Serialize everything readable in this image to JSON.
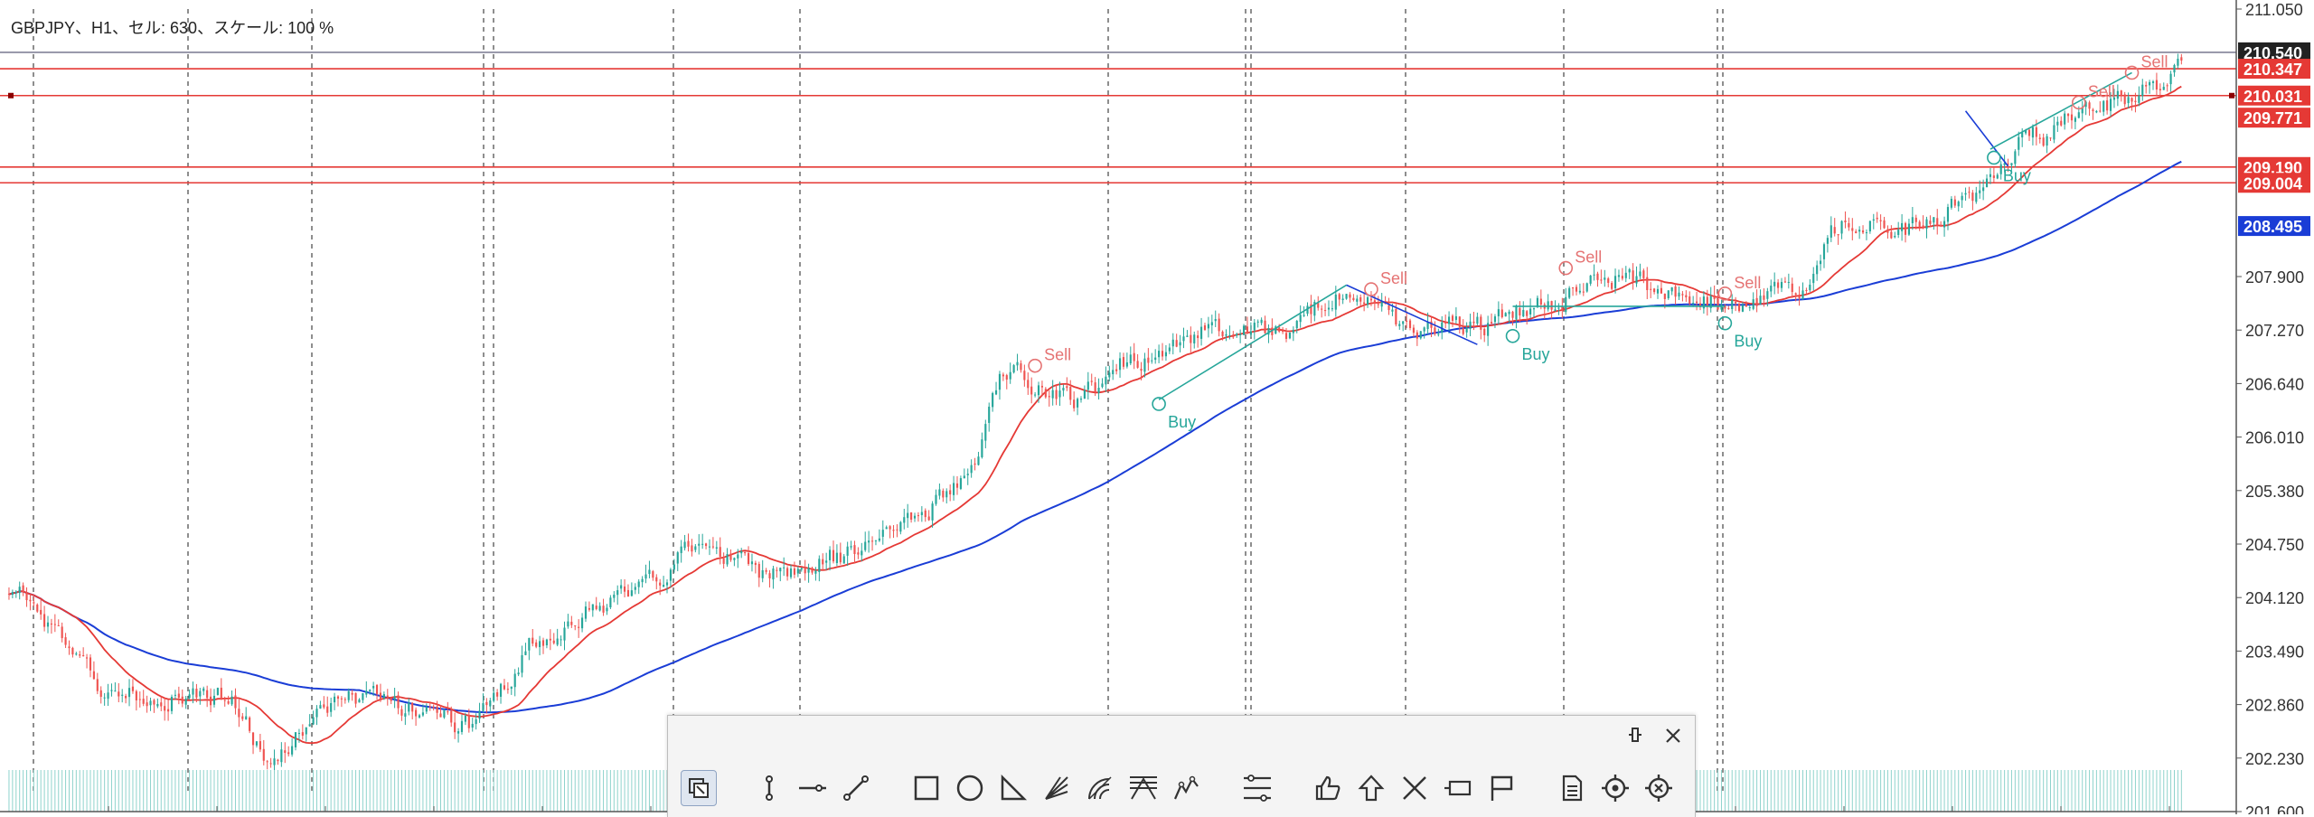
{
  "header": {
    "info": "GBPJPY、H1、セル: 630、スケール: 100 %"
  },
  "colors": {
    "bull": "#26a69a",
    "bear": "#ef5350",
    "ma_fast": "#e53935",
    "ma_slow": "#1a3dd6",
    "hline": "#e53935",
    "grid": "#444444",
    "axis_text": "#333333"
  },
  "chart_data": {
    "type": "candlestick",
    "symbol": "GBPJPY",
    "timeframe": "H1",
    "ylim": [
      201.6,
      211.05
    ],
    "y_ticks": [
      211.05,
      207.9,
      207.27,
      206.64,
      206.01,
      205.38,
      204.75,
      204.12,
      203.49,
      202.86,
      202.23,
      201.6
    ],
    "price_labels": [
      {
        "value": 210.54,
        "text": "210.540",
        "bg": "#222222"
      },
      {
        "value": 210.347,
        "text": "210.347",
        "bg": "#e53935"
      },
      {
        "value": 210.031,
        "text": "210.031",
        "bg": "#e53935"
      },
      {
        "value": 209.771,
        "text": "209.771",
        "bg": "#e53935"
      },
      {
        "value": 209.19,
        "text": "209.190",
        "bg": "#e53935"
      },
      {
        "value": 209.004,
        "text": "209.004",
        "bg": "#e53935"
      },
      {
        "value": 208.495,
        "text": "208.495",
        "bg": "#1a3dd6"
      }
    ],
    "hlines": [
      210.54,
      210.347,
      210.031,
      209.19,
      209.004
    ],
    "anchors": [
      [
        0,
        204.15
      ],
      [
        30,
        203.0
      ],
      [
        60,
        202.95
      ],
      [
        75,
        202.2
      ],
      [
        90,
        202.9
      ],
      [
        115,
        202.85
      ],
      [
        130,
        202.6
      ],
      [
        150,
        203.6
      ],
      [
        175,
        204.15
      ],
      [
        195,
        204.65
      ],
      [
        215,
        204.4
      ],
      [
        235,
        204.6
      ],
      [
        255,
        205.1
      ],
      [
        268,
        205.4
      ],
      [
        283,
        206.8
      ],
      [
        300,
        206.45
      ],
      [
        320,
        206.95
      ],
      [
        340,
        207.25
      ],
      [
        360,
        207.25
      ],
      [
        378,
        207.75
      ],
      [
        395,
        207.3
      ],
      [
        415,
        207.3
      ],
      [
        435,
        207.55
      ],
      [
        455,
        207.9
      ],
      [
        475,
        207.65
      ],
      [
        490,
        207.55
      ],
      [
        505,
        207.8
      ],
      [
        520,
        208.55
      ],
      [
        540,
        208.45
      ],
      [
        555,
        208.8
      ],
      [
        572,
        209.55
      ],
      [
        590,
        209.9
      ],
      [
        605,
        210.1
      ],
      [
        614,
        210.45
      ]
    ],
    "signals": [
      {
        "type": "Sell",
        "i": 290,
        "price": 206.85
      },
      {
        "type": "Buy",
        "i": 325,
        "price": 206.4
      },
      {
        "type": "Sell",
        "i": 385,
        "price": 207.75
      },
      {
        "type": "Buy",
        "i": 425,
        "price": 207.2
      },
      {
        "type": "Sell",
        "i": 440,
        "price": 208.0
      },
      {
        "type": "Sell",
        "i": 485,
        "price": 207.7
      },
      {
        "type": "Buy",
        "i": 485,
        "price": 207.35
      },
      {
        "type": "Buy",
        "i": 561,
        "price": 209.3
      },
      {
        "type": "Sell",
        "i": 585,
        "price": 209.95
      },
      {
        "type": "Sell",
        "i": 600,
        "price": 210.3
      }
    ]
  },
  "toolbar": {
    "tools": [
      {
        "name": "cursor-tool-icon"
      },
      {
        "name": "vertical-line-icon"
      },
      {
        "name": "horizontal-line-icon"
      },
      {
        "name": "trend-line-icon"
      },
      {
        "name": "rectangle-icon"
      },
      {
        "name": "ellipse-icon"
      },
      {
        "name": "triangle-icon"
      },
      {
        "name": "fibonacci-fan-icon"
      },
      {
        "name": "fibonacci-arc-icon"
      },
      {
        "name": "andrews-pitchfork-icon"
      },
      {
        "name": "elliott-wave-icon"
      },
      {
        "name": "fibonacci-levels-icon"
      },
      {
        "name": "thumbs-up-icon"
      },
      {
        "name": "arrow-up-icon"
      },
      {
        "name": "cross-icon"
      },
      {
        "name": "price-label-icon"
      },
      {
        "name": "flag-icon"
      },
      {
        "name": "template-icon"
      },
      {
        "name": "target-icon"
      },
      {
        "name": "target-clear-icon"
      }
    ]
  }
}
